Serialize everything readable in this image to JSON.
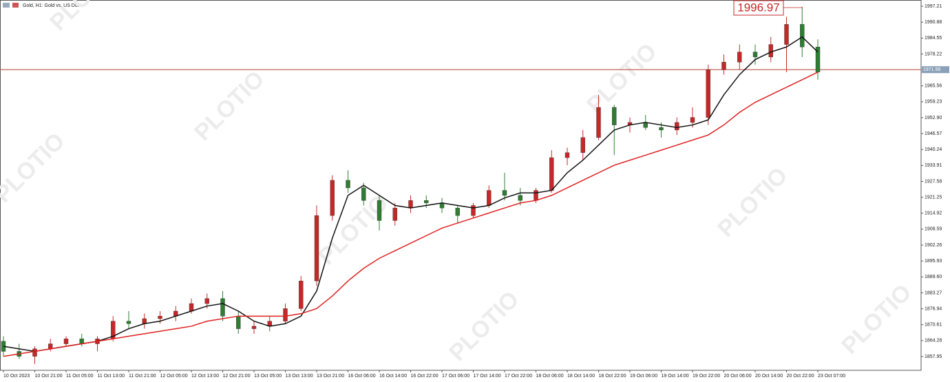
{
  "chart_data": {
    "type": "candlestick",
    "title": "Gold, H1: Gold vs. US Dollar",
    "watermark": "PLOTIO",
    "categories": [
      "10 Oct 2023",
      null,
      "10 Oct 21:00",
      null,
      "11 Oct 05:00",
      null,
      "11 Oct 13:00",
      null,
      "11 Oct 21:00",
      null,
      "12 Oct 05:00",
      null,
      "12 Oct 13:00",
      null,
      "12 Oct 21:00",
      null,
      "13 Oct 05:00",
      null,
      "13 Oct 13:00",
      null,
      "13 Oct 21:00",
      null,
      "16 Oct 06:00",
      null,
      "16 Oct 14:00",
      null,
      "16 Oct 22:00",
      null,
      "17 Oct 06:00",
      null,
      "17 Oct 14:00",
      null,
      "17 Oct 22:00",
      null,
      "18 Oct 06:00",
      null,
      "18 Oct 14:00",
      null,
      "18 Oct 22:00",
      null,
      "19 Oct 06:00",
      null,
      "19 Oct 14:00",
      null,
      "19 Oct 22:00",
      null,
      "20 Oct 06:00",
      null,
      "20 Oct 14:00",
      null,
      "20 Oct 22:00",
      null,
      "23 Oct 07:00"
    ],
    "open": [
      1864,
      1860,
      1858,
      1861,
      1863,
      1865,
      1863,
      1865,
      1872,
      1871,
      1873,
      1874,
      1876,
      1879,
      1881,
      1874,
      1869,
      1870,
      1872,
      1877,
      1888,
      1914,
      1928,
      1925,
      1920,
      1912,
      1917,
      1920,
      1919,
      1917,
      1914,
      1918,
      1924,
      1922,
      1920,
      1924,
      1937,
      1939,
      1945,
      1957,
      1950,
      1951,
      1949,
      1948,
      1951,
      1953,
      1972,
      1975,
      1979,
      1977,
      1982,
      1990,
      1981
    ],
    "high": [
      1866,
      1863,
      1862,
      1865,
      1866,
      1867,
      1866,
      1874,
      1876,
      1875,
      1876,
      1878,
      1881,
      1883,
      1884,
      1876,
      1872,
      1874,
      1879,
      1890,
      1918,
      1930,
      1932,
      1927,
      1922,
      1919,
      1922,
      1922,
      1921,
      1918,
      1919,
      1926,
      1931,
      1925,
      1925,
      1940,
      1941,
      1948,
      1962,
      1958,
      1953,
      1954,
      1951,
      1953,
      1957,
      1974,
      1978,
      1982,
      1982,
      1985,
      1993,
      1996.97,
      1984
    ],
    "low": [
      1858,
      1857,
      1855,
      1860,
      1862,
      1862,
      1860,
      1864,
      1869,
      1869,
      1871,
      1872,
      1875,
      1877,
      1872,
      1867,
      1867,
      1868,
      1871,
      1876,
      1886,
      1912,
      1923,
      1918,
      1908,
      1910,
      1915,
      1917,
      1915,
      1911,
      1913,
      1917,
      1920,
      1918,
      1919,
      1923,
      1934,
      1936,
      1944,
      1938,
      1947,
      1948,
      1945,
      1946,
      1949,
      1950,
      1970,
      1972,
      1974,
      1975,
      1971,
      1977,
      1968
    ],
    "close": [
      1860,
      1858,
      1861,
      1863,
      1865,
      1863,
      1865,
      1872,
      1871,
      1873,
      1874,
      1876,
      1879,
      1881,
      1874,
      1869,
      1870,
      1872,
      1877,
      1888,
      1914,
      1928,
      1925,
      1920,
      1912,
      1917,
      1920,
      1919,
      1917,
      1914,
      1918,
      1924,
      1922,
      1920,
      1924,
      1937,
      1939,
      1945,
      1957,
      1950,
      1951,
      1949,
      1948,
      1951,
      1953,
      1972,
      1975,
      1979,
      1977,
      1982,
      1990,
      1981,
      1971
    ],
    "up_color": "#c62828",
    "down_color": "#2e7d32",
    "moving_averages": [
      {
        "color": "#111111",
        "values": [
          1862,
          1861,
          1860,
          1861,
          1862,
          1863,
          1864,
          1866,
          1869,
          1871,
          1872,
          1874,
          1876,
          1878,
          1879,
          1876,
          1872,
          1870,
          1871,
          1874,
          1884,
          1905,
          1922,
          1926,
          1922,
          1918,
          1917,
          1918,
          1919,
          1918,
          1917,
          1918,
          1921,
          1923,
          1923,
          1924,
          1931,
          1936,
          1942,
          1948,
          1950,
          1951,
          1950,
          1949,
          1950,
          1952,
          1962,
          1970,
          1976,
          1979,
          1981,
          1985,
          1979
        ]
      },
      {
        "color": "#e02020",
        "values": [
          1858,
          1859,
          1860,
          1861,
          1862,
          1863,
          1864,
          1865,
          1866,
          1867,
          1868,
          1869,
          1870,
          1872,
          1873,
          1874,
          1874,
          1874,
          1874,
          1875,
          1877,
          1882,
          1888,
          1893,
          1897,
          1900,
          1903,
          1906,
          1909,
          1911,
          1913,
          1915,
          1917,
          1919,
          1920,
          1922,
          1925,
          1928,
          1931,
          1934,
          1936,
          1938,
          1940,
          1942,
          1944,
          1946,
          1950,
          1955,
          1959,
          1962,
          1965,
          1968,
          1971
        ]
      }
    ],
    "price_line": 1971.99,
    "ylim": [
      1852.47,
      1999.68
    ],
    "yticks": [
      {
        "value": 1997.21,
        "label": "1997.21"
      },
      {
        "value": 1990.88,
        "label": "1990.88"
      },
      {
        "value": 1984.55,
        "label": "1984.55"
      },
      {
        "value": 1978.22,
        "label": "1978.22"
      },
      {
        "value": 1965.56,
        "label": "1965.56"
      },
      {
        "value": 1959.23,
        "label": "1959.23"
      },
      {
        "value": 1952.9,
        "label": "1952.90"
      },
      {
        "value": 1946.57,
        "label": "1946.57"
      },
      {
        "value": 1940.24,
        "label": "1940.24"
      },
      {
        "value": 1933.91,
        "label": "1933.91"
      },
      {
        "value": 1927.58,
        "label": "1927.58"
      },
      {
        "value": 1921.25,
        "label": "1921.25"
      },
      {
        "value": 1914.92,
        "label": "1914.92"
      },
      {
        "value": 1908.59,
        "label": "1908.59"
      },
      {
        "value": 1902.26,
        "label": "1902.26"
      },
      {
        "value": 1895.93,
        "label": "1895.93"
      },
      {
        "value": 1889.6,
        "label": "1889.60"
      },
      {
        "value": 1883.27,
        "label": "1883.27"
      },
      {
        "value": 1876.94,
        "label": "1876.94"
      },
      {
        "value": 1870.61,
        "label": "1870.61"
      },
      {
        "value": 1864.28,
        "label": "1864.28"
      },
      {
        "value": 1857.95,
        "label": "1857.95"
      }
    ],
    "high_marker_index": 51
  }
}
